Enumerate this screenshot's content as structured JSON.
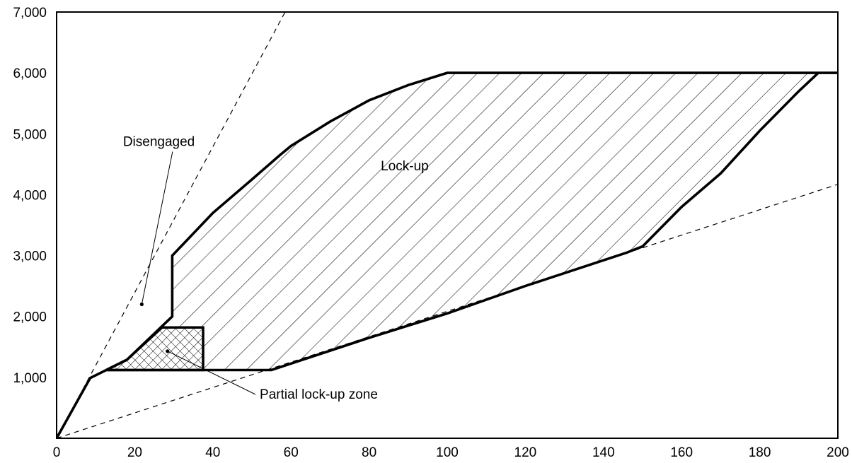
{
  "chart_data": {
    "type": "area",
    "title": "",
    "xlabel": "",
    "ylabel": "",
    "xlim": [
      0,
      200
    ],
    "ylim": [
      0,
      7000
    ],
    "x_ticks": [
      {
        "value": 0,
        "label": "0"
      },
      {
        "value": 20,
        "label": "20"
      },
      {
        "value": 40,
        "label": "40"
      },
      {
        "value": 60,
        "label": "60"
      },
      {
        "value": 80,
        "label": "80"
      },
      {
        "value": 100,
        "label": "100"
      },
      {
        "value": 120,
        "label": "120"
      },
      {
        "value": 140,
        "label": "140"
      },
      {
        "value": 160,
        "label": "160"
      },
      {
        "value": 180,
        "label": "180"
      },
      {
        "value": 200,
        "label": "200"
      }
    ],
    "y_ticks": [
      {
        "value": 1000,
        "label": "1,000"
      },
      {
        "value": 2000,
        "label": "2,000"
      },
      {
        "value": 3000,
        "label": "3,000"
      },
      {
        "value": 4000,
        "label": "4,000"
      },
      {
        "value": 5000,
        "label": "5,000"
      },
      {
        "value": 6000,
        "label": "6,000"
      },
      {
        "value": 7000,
        "label": "7,000"
      }
    ],
    "grid": false,
    "regions": [
      {
        "name": "Lock-up",
        "label": "Lock-up",
        "pattern": "diagonal-hatch",
        "points": [
          [
            29.6,
            2000
          ],
          [
            29.6,
            3000
          ],
          [
            40,
            3700
          ],
          [
            50,
            4250
          ],
          [
            57,
            4640
          ],
          [
            60,
            4800
          ],
          [
            70,
            5200
          ],
          [
            80,
            5550
          ],
          [
            90,
            5800
          ],
          [
            100,
            6000
          ],
          [
            195,
            6000
          ],
          [
            190,
            5700
          ],
          [
            180,
            5050
          ],
          [
            170,
            4350
          ],
          [
            160,
            3800
          ],
          [
            150,
            3150
          ],
          [
            146,
            3050
          ],
          [
            120,
            2500
          ],
          [
            100,
            2050
          ],
          [
            80,
            1650
          ],
          [
            55,
            1120
          ],
          [
            45,
            1120
          ],
          [
            37.5,
            1120
          ],
          [
            37.5,
            1820
          ],
          [
            27,
            1820
          ],
          [
            27,
            1700
          ]
        ]
      },
      {
        "name": "Partial lock-up zone",
        "label": "Partial lock-up zone",
        "pattern": "cross-hatch",
        "points": [
          [
            18,
            1290
          ],
          [
            27,
            1820
          ],
          [
            37.5,
            1820
          ],
          [
            37.5,
            1120
          ],
          [
            12.7,
            1120
          ]
        ]
      }
    ],
    "boundary_lines": [
      {
        "name": "operating-envelope",
        "style": "solid-thick",
        "points": [
          [
            0,
            0
          ],
          [
            8.6,
            990
          ],
          [
            12.7,
            1120
          ],
          [
            18,
            1290
          ],
          [
            29.6,
            2000
          ],
          [
            29.6,
            3000
          ],
          [
            40,
            3700
          ],
          [
            50,
            4250
          ],
          [
            57,
            4640
          ],
          [
            60,
            4800
          ],
          [
            70,
            5200
          ],
          [
            80,
            5550
          ],
          [
            90,
            5800
          ],
          [
            100,
            6000
          ],
          [
            200,
            6000
          ]
        ]
      },
      {
        "name": "lower-boundary",
        "style": "solid-thick",
        "points": [
          [
            12.7,
            1120
          ],
          [
            55,
            1120
          ],
          [
            80,
            1650
          ],
          [
            100,
            2050
          ],
          [
            120,
            2500
          ],
          [
            146,
            3050
          ],
          [
            150,
            3150
          ],
          [
            160,
            3800
          ],
          [
            170,
            4350
          ],
          [
            180,
            5050
          ],
          [
            190,
            5700
          ],
          [
            195,
            6000
          ]
        ]
      },
      {
        "name": "steep-dashed-line",
        "style": "dashed",
        "points": [
          [
            0,
            0
          ],
          [
            58.5,
            7000
          ]
        ]
      },
      {
        "name": "shallow-dashed-line",
        "style": "dashed",
        "points": [
          [
            0,
            0
          ],
          [
            200,
            4170
          ]
        ]
      }
    ],
    "annotations": [
      {
        "text": "Disengaged",
        "text_at": [
          17,
          4800
        ],
        "point": [
          21.8,
          2200
        ]
      },
      {
        "text": "Lock-up",
        "text_at": [
          83,
          4400
        ],
        "point": null
      },
      {
        "text": "Partial lock-up zone",
        "text_at": [
          52,
          650
        ],
        "point": [
          28.4,
          1430
        ]
      }
    ]
  }
}
